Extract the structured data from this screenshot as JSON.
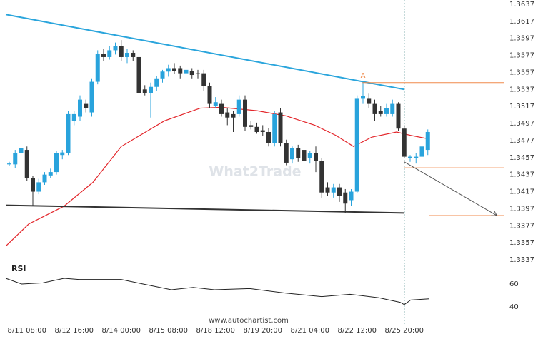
{
  "chart_data": {
    "type": "candlestick",
    "categories": [
      null,
      null,
      null,
      "8/11 08:00",
      null,
      null,
      null,
      null,
      null,
      null,
      null,
      "8/12 16:00",
      null,
      null,
      null,
      null,
      null,
      null,
      null,
      "8/14 00:00",
      null,
      null,
      null,
      null,
      null,
      null,
      null,
      "8/15 08:00",
      null,
      null,
      null,
      null,
      null,
      null,
      null,
      "8/18 12:00",
      null,
      null,
      null,
      null,
      null,
      null,
      null,
      "8/19 20:00",
      null,
      null,
      null,
      null,
      null,
      null,
      null,
      "8/21 04:00",
      null,
      null,
      null,
      null,
      null,
      null,
      null,
      "8/22 12:00",
      null,
      null,
      null,
      null,
      null,
      null,
      null,
      "8/25 20:00",
      null,
      null,
      null,
      null
    ],
    "open": [
      1.3449,
      1.3449,
      1.3462,
      1.3466,
      1.3433,
      1.3417,
      1.3428,
      1.3436,
      1.344,
      1.346,
      1.3462,
      1.35,
      1.3505,
      1.352,
      1.351,
      1.3546,
      1.3579,
      1.3575,
      1.3583,
      1.3588,
      1.3575,
      1.358,
      1.3575,
      1.3537,
      1.3533,
      1.354,
      1.355,
      1.3558,
      1.3562,
      1.3562,
      1.3556,
      1.3559,
      1.3556,
      1.3556,
      1.3541,
      1.3518,
      1.352,
      1.351,
      1.3508,
      1.3508,
      1.3525,
      1.3495,
      1.3493,
      1.3489,
      1.3487,
      1.3474,
      1.351,
      1.3474,
      1.3455,
      1.3468,
      1.3466,
      1.3456,
      1.3462,
      1.3453,
      1.3422,
      1.3416,
      1.3422,
      1.3416,
      1.3407,
      1.3417,
      1.3526,
      1.3526,
      1.352,
      1.3512,
      1.3508,
      1.3508,
      1.352,
      1.3491,
      1.3456,
      1.3456,
      1.3458,
      1.3466
    ],
    "high": [
      1.3452,
      1.3466,
      1.3472,
      1.347,
      1.3435,
      1.3432,
      1.344,
      1.3444,
      1.3465,
      1.3466,
      1.3512,
      1.3512,
      1.353,
      1.3525,
      1.355,
      1.3583,
      1.3585,
      1.3588,
      1.3592,
      1.3595,
      1.3585,
      1.3583,
      1.3578,
      1.3542,
      1.3545,
      1.3553,
      1.356,
      1.3566,
      1.3568,
      1.3565,
      1.3565,
      1.3562,
      1.356,
      1.356,
      1.3545,
      1.3528,
      1.3525,
      1.3515,
      1.3512,
      1.353,
      1.353,
      1.35,
      1.3498,
      1.3495,
      1.3492,
      1.3512,
      1.3515,
      1.3478,
      1.347,
      1.3472,
      1.347,
      1.3465,
      1.347,
      1.3456,
      1.3428,
      1.3426,
      1.3426,
      1.342,
      1.342,
      1.353,
      1.3546,
      1.3532,
      1.3525,
      1.3518,
      1.352,
      1.3525,
      1.3522,
      1.3495,
      1.346,
      1.3462,
      1.3475,
      1.349
    ],
    "low": [
      1.3447,
      1.3445,
      1.3455,
      1.343,
      1.3401,
      1.3414,
      1.3425,
      1.3433,
      1.3437,
      1.3455,
      1.346,
      1.3495,
      1.35,
      1.351,
      1.3505,
      1.3543,
      1.357,
      1.3572,
      1.3578,
      1.357,
      1.3568,
      1.357,
      1.353,
      1.353,
      1.3504,
      1.3535,
      1.3545,
      1.3552,
      1.3555,
      1.355,
      1.355,
      1.355,
      1.355,
      1.3535,
      1.3515,
      1.3515,
      1.3505,
      1.3495,
      1.3487,
      1.3505,
      1.3488,
      1.349,
      1.3485,
      1.3482,
      1.347,
      1.347,
      1.347,
      1.3448,
      1.345,
      1.3452,
      1.3448,
      1.345,
      1.344,
      1.341,
      1.3412,
      1.341,
      1.3405,
      1.3392,
      1.34,
      1.3415,
      1.352,
      1.3515,
      1.35,
      1.3505,
      1.3505,
      1.3505,
      1.3488,
      1.3456,
      1.3452,
      1.345,
      1.3441,
      1.346
    ],
    "close": [
      1.345,
      1.3462,
      1.3468,
      1.3433,
      1.3417,
      1.3428,
      1.3437,
      1.344,
      1.3462,
      1.3463,
      1.3508,
      1.3508,
      1.3525,
      1.3515,
      1.3546,
      1.3579,
      1.3575,
      1.3583,
      1.3588,
      1.3575,
      1.358,
      1.3575,
      1.3533,
      1.3533,
      1.354,
      1.355,
      1.3558,
      1.3562,
      1.3559,
      1.3556,
      1.356,
      1.3554,
      1.3555,
      1.3541,
      1.352,
      1.3522,
      1.3508,
      1.3504,
      1.3504,
      1.3525,
      1.3493,
      1.3493,
      1.3487,
      1.3487,
      1.3474,
      1.3508,
      1.3474,
      1.3451,
      1.3468,
      1.3456,
      1.3453,
      1.3462,
      1.3453,
      1.3416,
      1.3416,
      1.3422,
      1.3412,
      1.3403,
      1.3417,
      1.3526,
      1.3529,
      1.352,
      1.3508,
      1.3508,
      1.3515,
      1.352,
      1.3491,
      1.3458,
      1.3458,
      1.3458,
      1.347,
      1.3487
    ],
    "colors": {
      "up": "#29a3dc",
      "down": "#333333"
    },
    "ylim": [
      1.3336,
      1.3642
    ],
    "yticks": [
      1.3637,
      1.3617,
      1.3597,
      1.3577,
      1.3557,
      1.3537,
      1.3517,
      1.3497,
      1.3477,
      1.3457,
      1.3437,
      1.3417,
      1.3397,
      1.3377,
      1.3357,
      1.3337
    ],
    "moving_average": {
      "color": "#e3262b",
      "x": [
        -0.6,
        3.3,
        9.3,
        14.2,
        19,
        26.3,
        32.4,
        36,
        42,
        46.9,
        51.8,
        55.4,
        58.4,
        61.5,
        65.7,
        68.1,
        71.1
      ],
      "values": [
        1.3353,
        1.3379,
        1.34,
        1.3428,
        1.347,
        1.35,
        1.3515,
        1.3516,
        1.3512,
        1.3506,
        1.3495,
        1.3483,
        1.347,
        1.3481,
        1.3487,
        1.3483,
        1.3479
      ]
    },
    "trendlines": [
      {
        "color": "#2aa5dc",
        "x": [
          -0.6,
          67
        ],
        "values": [
          1.3625,
          1.3537
        ]
      },
      {
        "color": "#333333",
        "x": [
          -0.6,
          67
        ],
        "values": [
          1.3401,
          1.3392
        ]
      }
    ],
    "levels": [
      {
        "value": 1.3545,
        "from": 59.9,
        "color": "#f08a4b"
      },
      {
        "value": 1.3445,
        "from": 67,
        "color": "#f08a4b"
      },
      {
        "value": 1.3389,
        "from": 71.2,
        "color": "#f08a4b"
      }
    ],
    "forecast": {
      "x": [
        67,
        82.7
      ],
      "values": [
        1.3452,
        1.3389
      ],
      "color": "#555555"
    },
    "annotation": {
      "text": "A",
      "x": 60,
      "value": 1.3553,
      "color": "#f08a4b"
    },
    "rsi": {
      "title": "RSI",
      "color": "#222222",
      "ylim": [
        34,
        76
      ],
      "yticks": [
        40,
        60
      ],
      "x": [
        -0.6,
        2.1,
        5.7,
        9.3,
        11.8,
        19,
        22.7,
        27.5,
        31.2,
        34.8,
        40.8,
        46.9,
        53,
        57.8,
        62.7,
        66.3,
        67,
        68.1,
        71.2
      ],
      "values": [
        65,
        60,
        61,
        65,
        64,
        64,
        60,
        55,
        57,
        55,
        56,
        52,
        49,
        51,
        48,
        44,
        42,
        46,
        47
      ]
    },
    "watermark": "What2Trade",
    "source": "www.autochartist.com"
  }
}
